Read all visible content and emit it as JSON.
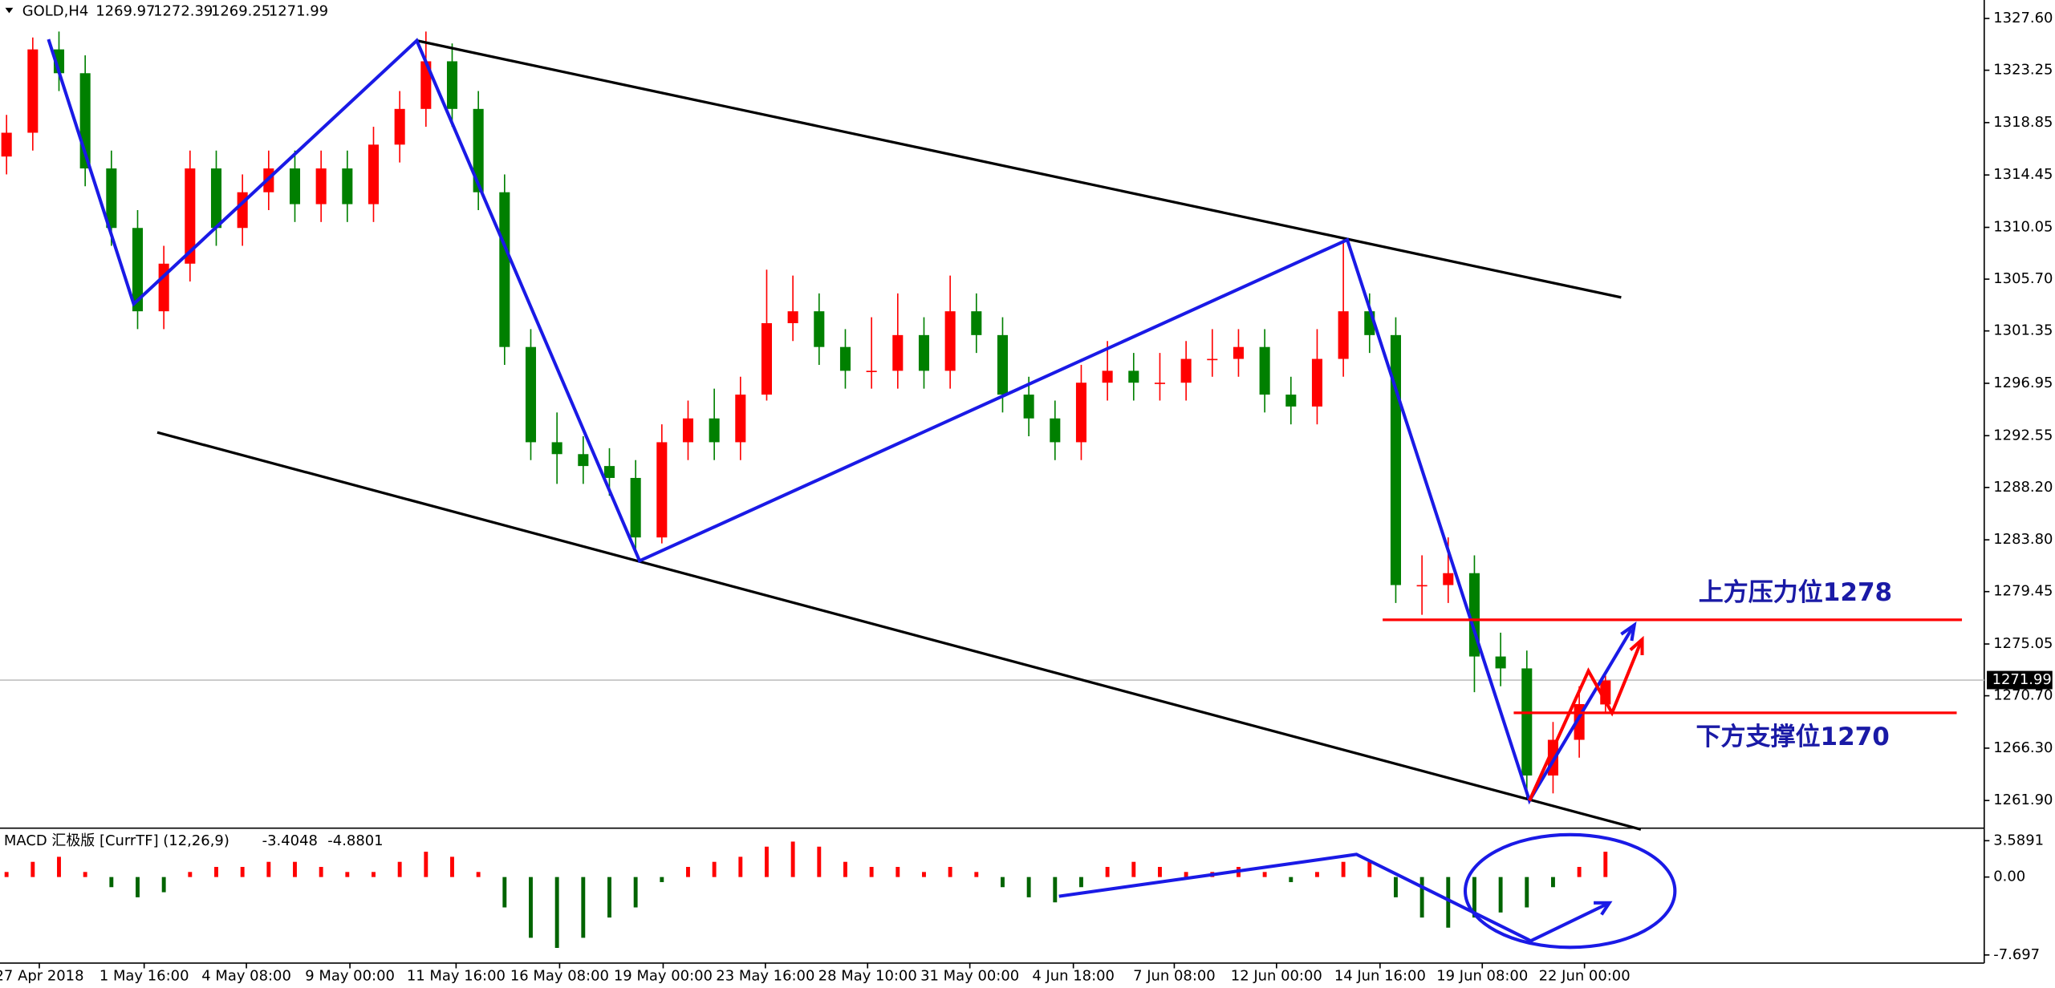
{
  "chart_data": [
    {
      "type": "candlestick",
      "symbol": "GOLD,H4",
      "up_color": "#ff0000",
      "down_color": "#008000",
      "open": [
        1316,
        1318,
        1325,
        1323,
        1315,
        1310,
        1303,
        1307,
        1315,
        1310,
        1313,
        1315,
        1312,
        1315,
        1312,
        1317,
        1320,
        1324,
        1320,
        1313,
        1300,
        1292,
        1291,
        1290,
        1289,
        1284,
        1292,
        1294,
        1292,
        1296,
        1302,
        1303,
        1300,
        1298,
        1298,
        1301,
        1298,
        1303,
        1301,
        1296,
        1294,
        1292,
        1297,
        1298,
        1297,
        1297,
        1299,
        1299,
        1300,
        1296,
        1295,
        1299,
        1303,
        1301,
        1280,
        1280,
        1281,
        1274,
        1273,
        1264,
        1267,
        1269.97
      ],
      "high": [
        1319.5,
        1326,
        1326.5,
        1324.5,
        1316.5,
        1311.5,
        1308.5,
        1316.5,
        1316.5,
        1314.5,
        1316.5,
        1316.5,
        1316.5,
        1316.5,
        1318.5,
        1321.5,
        1326.5,
        1325.5,
        1321.5,
        1314.5,
        1301.5,
        1294.5,
        1292.5,
        1291.5,
        1290.5,
        1293.5,
        1295.5,
        1296.5,
        1297.5,
        1306.5,
        1306,
        1304.5,
        1301.5,
        1302.5,
        1304.5,
        1302.5,
        1306,
        1304.5,
        1302.5,
        1297.5,
        1295.5,
        1298.5,
        1300.5,
        1299.5,
        1299.5,
        1300.5,
        1301.5,
        1301.5,
        1301.5,
        1297.5,
        1301.5,
        1309,
        1304.5,
        1302.5,
        1282.5,
        1284,
        1282.5,
        1276,
        1274.5,
        1268.5,
        1271.5,
        1272.39
      ],
      "low": [
        1314.5,
        1316.5,
        1321.5,
        1313.5,
        1308.5,
        1301.5,
        1301.5,
        1305.5,
        1308.5,
        1308.5,
        1311.5,
        1310.5,
        1310.5,
        1310.5,
        1310.5,
        1315.5,
        1318.5,
        1318.5,
        1311.5,
        1298.5,
        1290.5,
        1288.5,
        1288.5,
        1287.5,
        1283,
        1283.5,
        1290.5,
        1290.5,
        1290.5,
        1295.5,
        1300.5,
        1298.5,
        1296.5,
        1296.5,
        1296.5,
        1296.5,
        1296.5,
        1299.5,
        1294.5,
        1292.5,
        1290.5,
        1290.5,
        1295.5,
        1295.5,
        1295.5,
        1295.5,
        1297.5,
        1297.5,
        1294.5,
        1293.5,
        1293.5,
        1297.5,
        1299.5,
        1278.5,
        1277.5,
        1278.5,
        1271,
        1271.5,
        1262,
        1262.5,
        1265.5,
        1269.25
      ],
      "close": [
        1318,
        1325,
        1323,
        1315,
        1310,
        1303,
        1307,
        1315,
        1310,
        1313,
        1315,
        1312,
        1315,
        1312,
        1317,
        1320,
        1324,
        1320,
        1313,
        1300,
        1292,
        1291,
        1290,
        1289,
        1284,
        1292,
        1294,
        1292,
        1296,
        1302,
        1303,
        1300,
        1298,
        1298,
        1301,
        1298,
        1303,
        1301,
        1296,
        1294,
        1292,
        1297,
        1298,
        1297,
        1297,
        1299,
        1299,
        1300,
        1296,
        1295,
        1299,
        1303,
        1301,
        1280,
        1280,
        1281,
        1274,
        1273,
        1264,
        1267,
        1270,
        1271.99
      ],
      "xlim": [
        -0.25,
        75.45
      ],
      "xticks": [
        {
          "value": 1.25,
          "label": "27 Apr 2018"
        },
        {
          "value": 5.25,
          "label": "1 May 16:00"
        },
        {
          "value": 9.15,
          "label": "4 May 08:00"
        },
        {
          "value": 13.1,
          "label": "9 May 00:00"
        },
        {
          "value": 17.15,
          "label": "11 May 16:00"
        },
        {
          "value": 21.1,
          "label": "16 May 08:00"
        },
        {
          "value": 25.05,
          "label": "19 May 00:00"
        },
        {
          "value": 28.95,
          "label": "23 May 16:00"
        },
        {
          "value": 32.85,
          "label": "28 May 10:00"
        },
        {
          "value": 36.75,
          "label": "31 May 00:00"
        },
        {
          "value": 40.7,
          "label": "4 Jun 18:00"
        },
        {
          "value": 44.55,
          "label": "7 Jun 08:00"
        },
        {
          "value": 48.45,
          "label": "12 Jun 00:00"
        },
        {
          "value": 52.4,
          "label": "14 Jun 16:00"
        },
        {
          "value": 56.3,
          "label": "19 Jun 08:00"
        },
        {
          "value": 60.2,
          "label": "22 Jun 00:00"
        }
      ],
      "ylim": [
        1259.8,
        1329.15
      ],
      "yticks": [
        {
          "value": 1327.6,
          "label": "1327.60"
        },
        1323.25,
        1318.85,
        1314.45,
        1310.05,
        {
          "value": 1305.7,
          "label": "1305.70"
        },
        1301.35,
        1296.95,
        1292.55,
        {
          "value": 1288.2,
          "label": "1288.20"
        },
        {
          "value": 1283.8,
          "label": "1283.80"
        },
        1279.45,
        1275.05,
        {
          "value": 1270.7,
          "label": "1270.70"
        },
        {
          "value": 1266.3,
          "label": "1266.30"
        },
        {
          "value": 1261.9,
          "label": "1261.90"
        }
      ],
      "annotations": [
        "上方压力位1278",
        "下方支撑位1270"
      ]
    },
    {
      "type": "macd",
      "title": "MACD 汇极版 [CurrTF] (12,26,9)",
      "main": -3.4048,
      "signal": -4.8801,
      "up_color": "#ff0000",
      "down_color": "#006400",
      "values": [
        0.5,
        1.5,
        2,
        0.5,
        -1,
        -2,
        -1.5,
        0.5,
        1,
        1,
        1.5,
        1.5,
        1,
        0.5,
        0.5,
        1.5,
        2.5,
        2,
        0.5,
        -3,
        -6,
        -7,
        -6,
        -4,
        -3,
        -0.5,
        1,
        1.5,
        2,
        3,
        3.5,
        3,
        1.5,
        1,
        1,
        0.5,
        1,
        0.5,
        -1,
        -2,
        -2.5,
        -1,
        1,
        1.5,
        1,
        0.5,
        0.5,
        1,
        0.5,
        -0.5,
        0.5,
        1.5,
        1.5,
        -2,
        -4,
        -5,
        -4,
        -3.5,
        -3,
        -1,
        1,
        2.5
      ],
      "ylim": [
        -8.5,
        4.7
      ],
      "yticks": [
        3.5891,
        {
          "value": 0,
          "label": "0.00"
        },
        -7.697
      ]
    }
  ]
}
